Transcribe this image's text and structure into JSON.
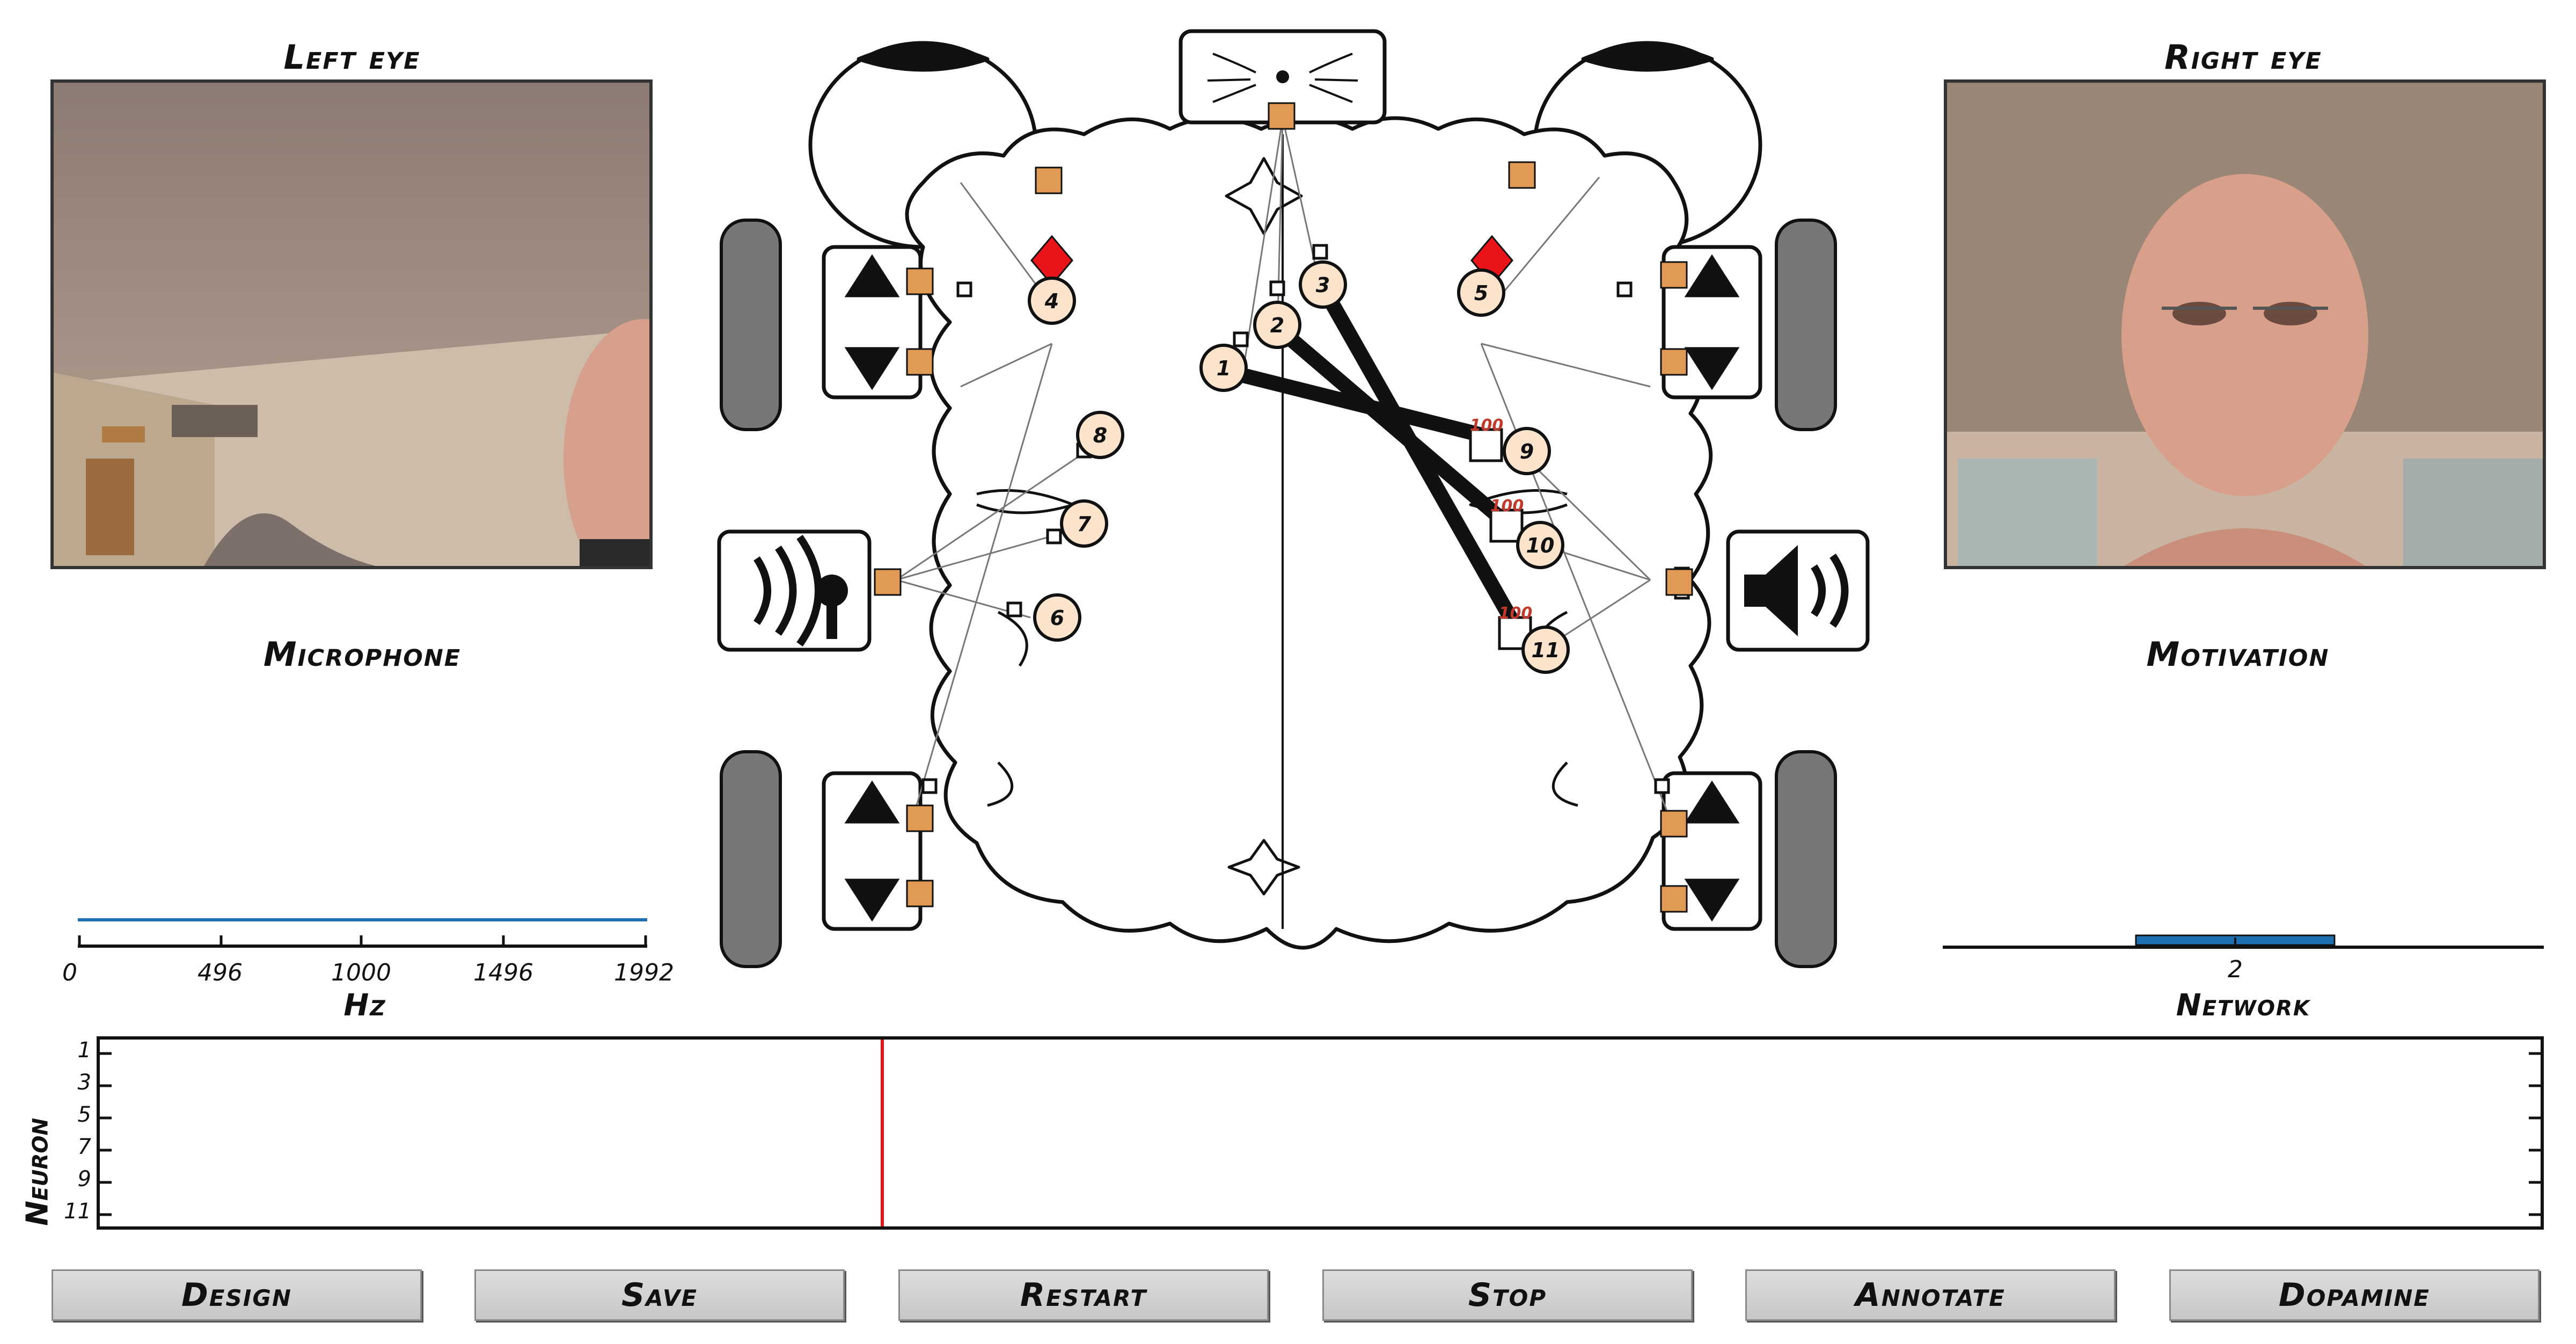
{
  "panels": {
    "left_eye_title": "Left eye",
    "right_eye_title": "Right eye",
    "microphone_title": "Microphone",
    "motivation_title": "Motivation",
    "network_label": "Network",
    "neuron_label": "Neuron"
  },
  "microphone_axis": {
    "ticks": [
      "0",
      "496",
      "1000",
      "1496",
      "1992"
    ],
    "unit": "Hz"
  },
  "motivation_axis": {
    "ticks": [
      "2"
    ]
  },
  "raster": {
    "y_ticks": [
      "1",
      "3",
      "5",
      "7",
      "9",
      "11"
    ]
  },
  "neurons": [
    {
      "id": "1"
    },
    {
      "id": "2"
    },
    {
      "id": "3"
    },
    {
      "id": "4"
    },
    {
      "id": "5"
    },
    {
      "id": "6"
    },
    {
      "id": "7"
    },
    {
      "id": "8"
    },
    {
      "id": "9"
    },
    {
      "id": "10"
    },
    {
      "id": "11"
    }
  ],
  "synapse_labels": [
    "100",
    "100",
    "100"
  ],
  "buttons": {
    "design": "Design",
    "save": "Save",
    "restart": "Restart",
    "stop": "Stop",
    "annotate": "Annotate",
    "dopamine": "Dopamine"
  },
  "colors": {
    "orange": "#e09a55",
    "neuron_fill": "#fbe3cc",
    "red": "#e8141a",
    "blue": "#1f6fb3"
  },
  "icons": {
    "wheel": "tire-icon",
    "motor": "up-down-arrow-icon",
    "mic": "microphone-icon",
    "speaker": "speaker-icon",
    "camera": "camera-icon"
  }
}
